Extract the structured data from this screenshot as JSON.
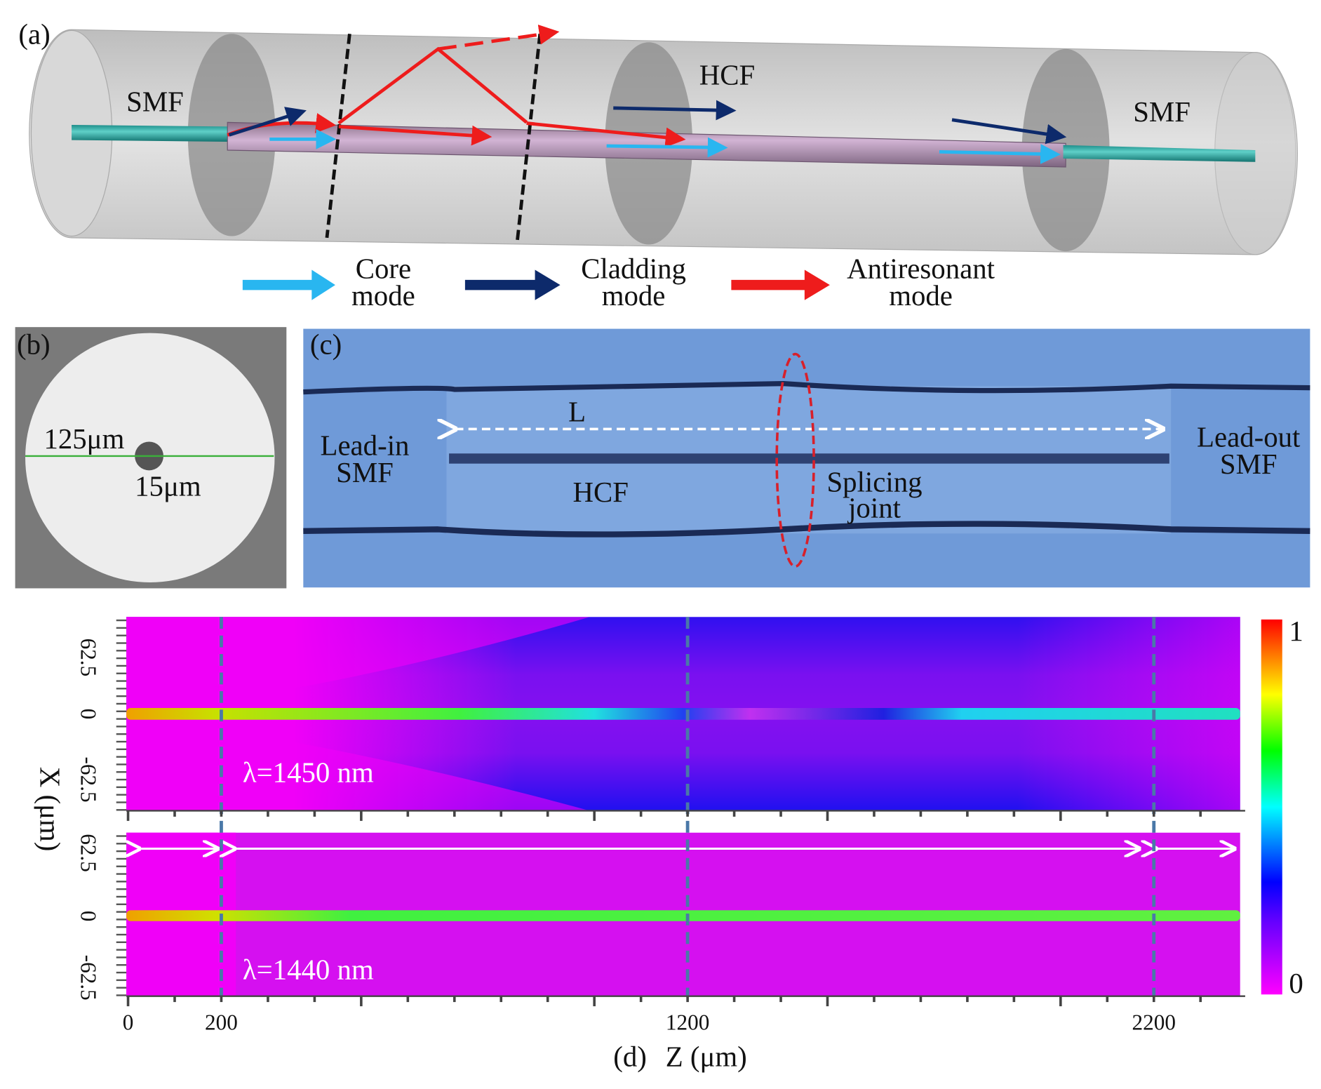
{
  "panel_a": {
    "label": "(a)",
    "smf_left": "SMF",
    "hcf": "HCF",
    "smf_right": "SMF",
    "legend": [
      {
        "line1": "Core",
        "line2": "mode",
        "color": "#29b6f0"
      },
      {
        "line1": "Cladding",
        "line2": "mode",
        "color": "#0d2a6b"
      },
      {
        "line1": "Antiresonant",
        "line2": "mode",
        "color": "#ee1c1c"
      }
    ]
  },
  "panel_b": {
    "label": "(b)",
    "outer_diameter": "125μm",
    "core_diameter": "15μm"
  },
  "panel_c": {
    "label": "(c)",
    "lead_in_1": "Lead-in",
    "lead_in_2": "SMF",
    "lead_out_1": "Lead-out",
    "lead_out_2": "SMF",
    "length": "L",
    "hcf": "HCF",
    "splice_1": "Splicing",
    "splice_2": "joint",
    "background": "#6f9ad8"
  },
  "chart_data": {
    "type": "heatmap",
    "panel_label": "(d)",
    "xlabel": "Z (μm)",
    "ylabel": "X (μm)",
    "xlim": [
      0,
      2385
    ],
    "ylim": [
      -62.5,
      62.5
    ],
    "xticks": [
      0,
      200,
      1200,
      2200
    ],
    "yticks": [
      "62.5",
      "0",
      "-62.5"
    ],
    "dashed_lines_z": [
      200,
      1200,
      2200
    ],
    "colorbar": {
      "min": "0",
      "max": "1",
      "colormap": "rainbow (magenta-blue-cyan-green-yellow-red)"
    },
    "maps": [
      {
        "label": "λ=1450 nm"
      },
      {
        "label": "λ=1440 nm"
      }
    ]
  }
}
